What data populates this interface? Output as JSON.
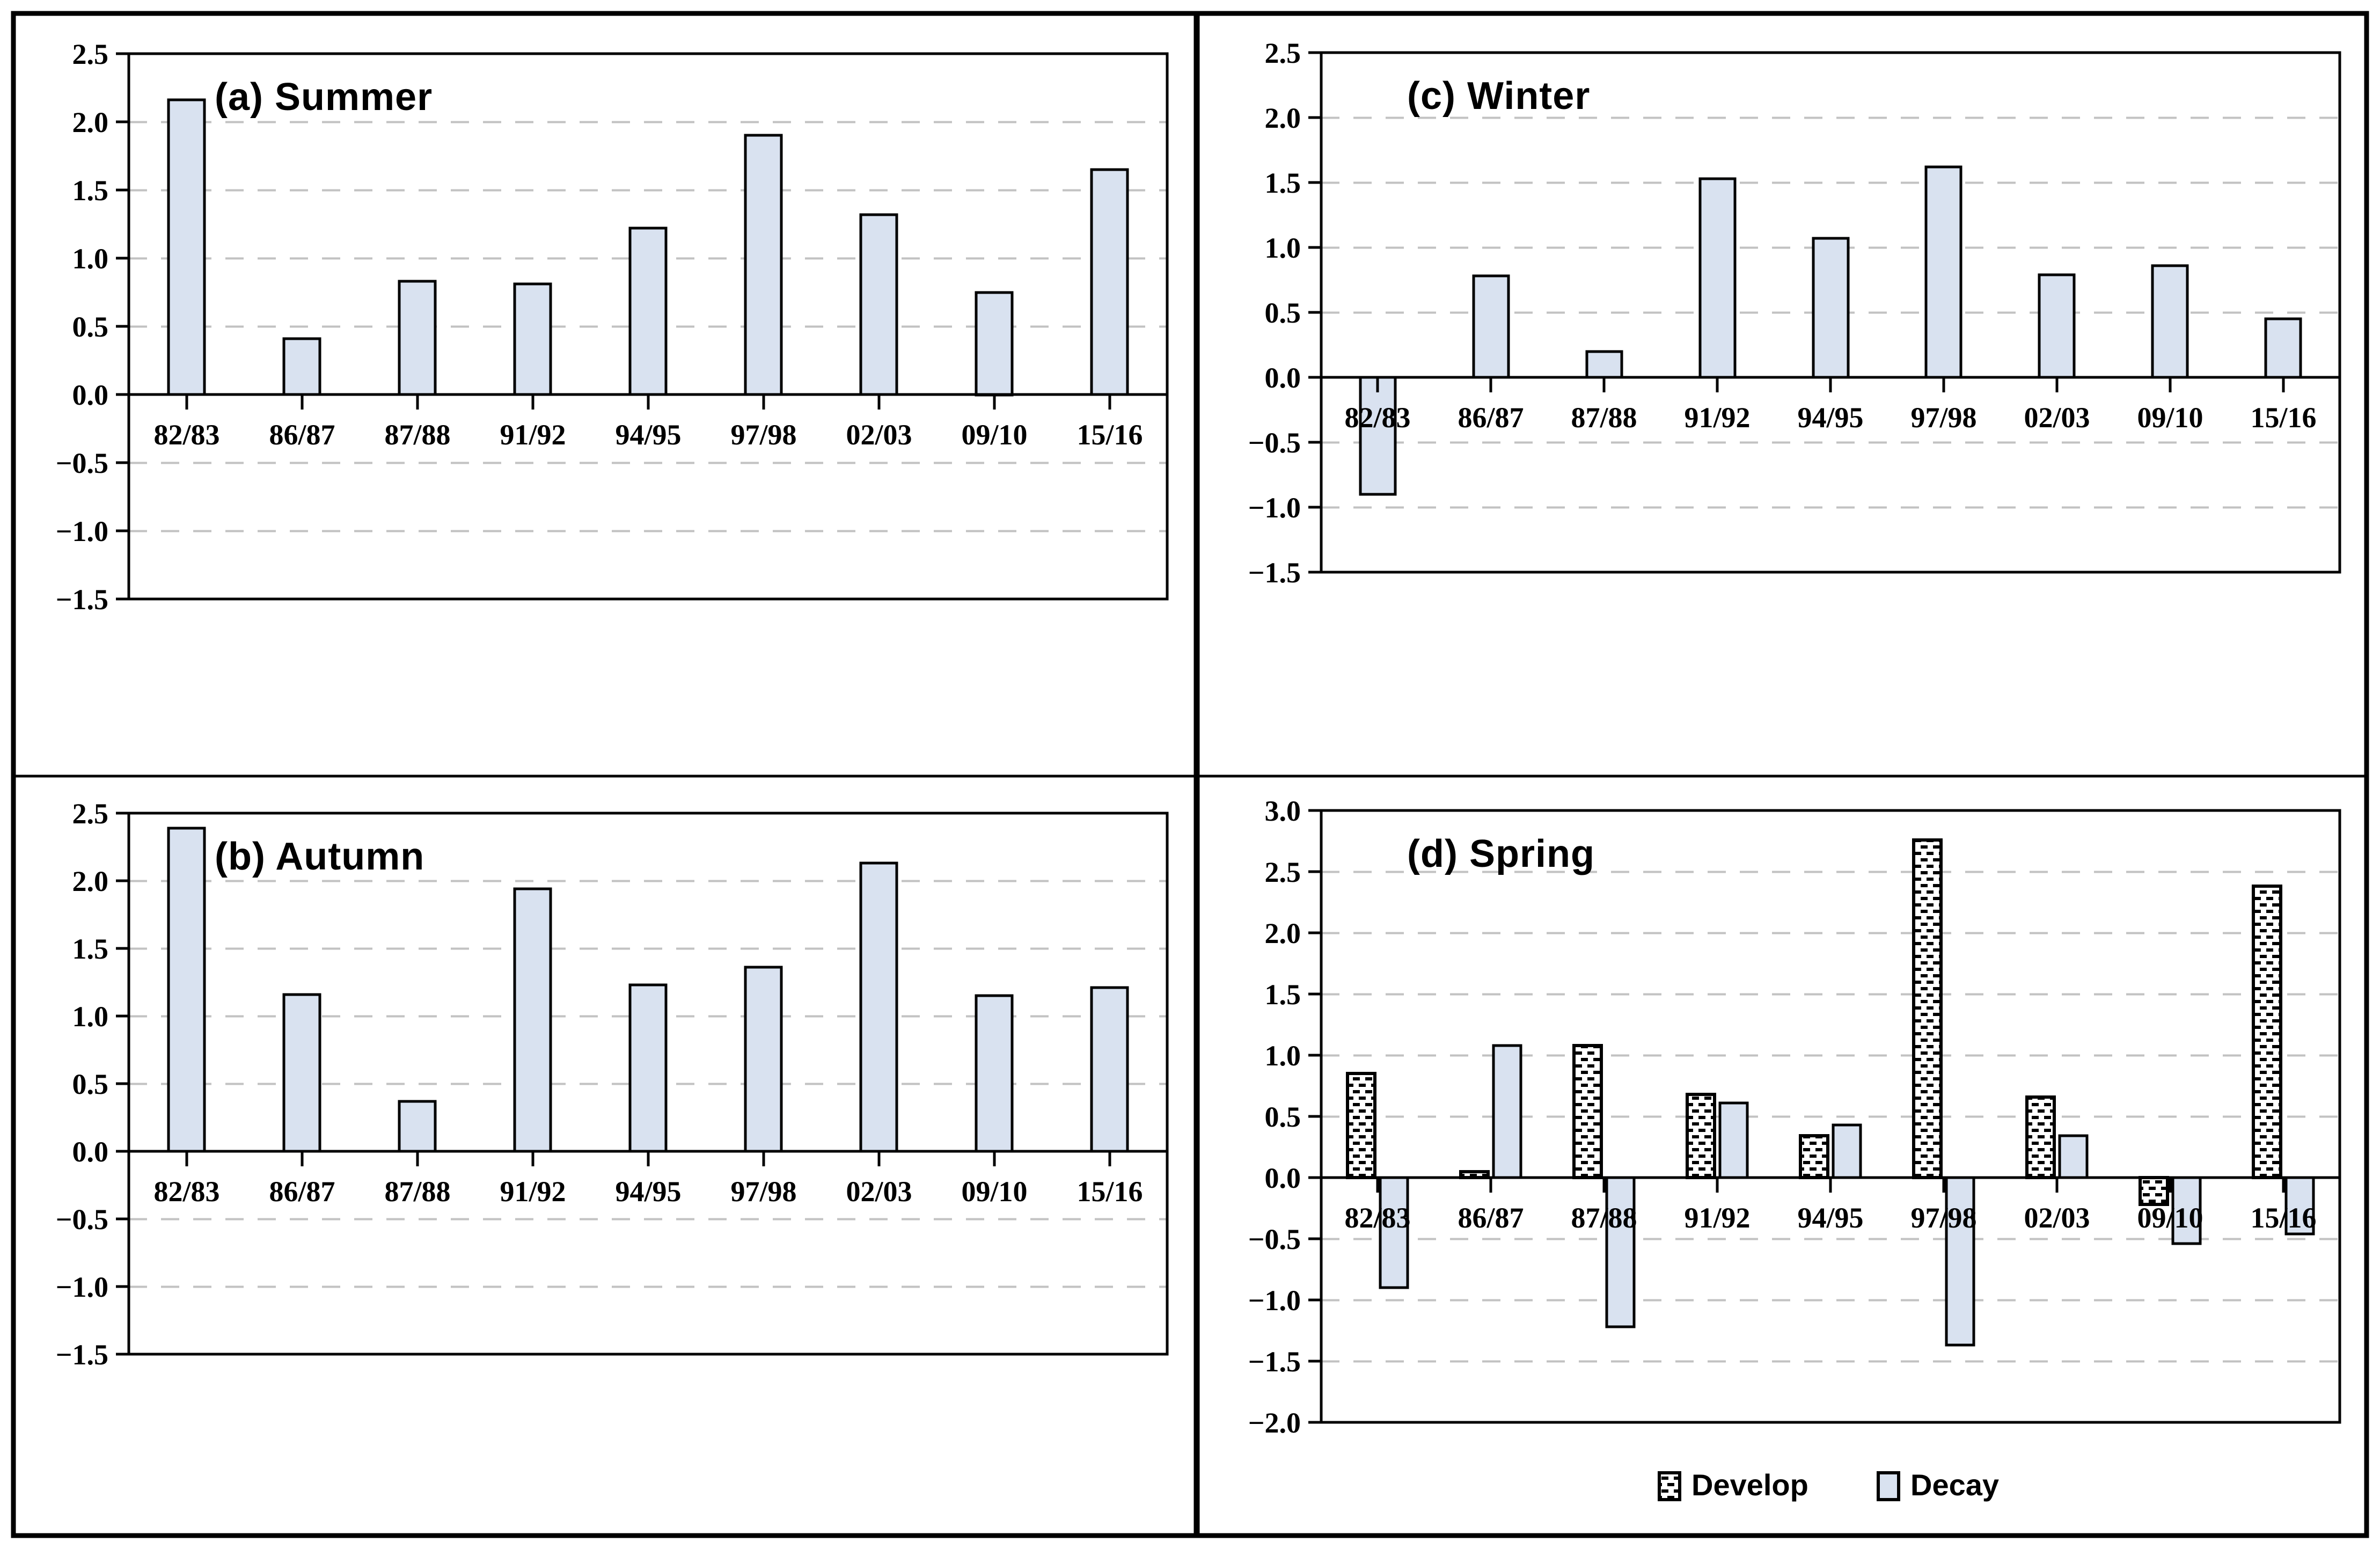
{
  "colors": {
    "background": "#ffffff",
    "bar_fill_decay": "#d9e2f0",
    "bar_fill_develop": "#ffffff",
    "develop_dash": "#000000",
    "bar_border": "#000000",
    "gridline": "#c2c2c2",
    "axis": "#000000",
    "text": "#000000"
  },
  "legend": {
    "develop_label": "Develop",
    "decay_label": "Decay"
  },
  "chart_data": [
    {
      "id": "a",
      "type": "bar",
      "title": "(a) Summer",
      "categories": [
        "82/83",
        "86/87",
        "87/88",
        "91/92",
        "94/95",
        "97/98",
        "02/03",
        "09/10",
        "15/16"
      ],
      "values": [
        2.16,
        0.41,
        0.83,
        0.81,
        1.22,
        1.9,
        1.32,
        0.75,
        1.65
      ],
      "ylim": [
        -1.5,
        2.5
      ],
      "ytick_step": 0.5,
      "yticks": [
        "2.5",
        "2.0",
        "1.5",
        "1.0",
        "0.5",
        "0.0",
        "−0.5",
        "−1.0",
        "−1.5"
      ],
      "grid": "dashed",
      "legend_position": "none"
    },
    {
      "id": "b",
      "type": "bar",
      "title": "(b) Autumn",
      "categories": [
        "82/83",
        "86/87",
        "87/88",
        "91/92",
        "94/95",
        "97/98",
        "02/03",
        "09/10",
        "15/16"
      ],
      "values": [
        2.39,
        1.16,
        0.37,
        1.94,
        1.23,
        1.36,
        2.13,
        1.15,
        1.21
      ],
      "ylim": [
        -1.5,
        2.5
      ],
      "ytick_step": 0.5,
      "yticks": [
        "2.5",
        "2.0",
        "1.5",
        "1.0",
        "0.5",
        "0.0",
        "−0.5",
        "−1.0",
        "−1.5"
      ],
      "grid": "dashed",
      "legend_position": "none"
    },
    {
      "id": "c",
      "type": "bar",
      "title": "(c) Winter",
      "categories": [
        "82/83",
        "86/87",
        "87/88",
        "91/92",
        "94/95",
        "97/98",
        "02/03",
        "09/10",
        "15/16"
      ],
      "values": [
        -0.9,
        0.78,
        0.2,
        1.53,
        1.07,
        1.62,
        0.79,
        0.86,
        0.45
      ],
      "ylim": [
        -1.5,
        2.5
      ],
      "ytick_step": 0.5,
      "yticks": [
        "2.5",
        "2.0",
        "1.5",
        "1.0",
        "0.5",
        "0.0",
        "−0.5",
        "−1.0",
        "−1.5"
      ],
      "grid": "dashed",
      "legend_position": "none"
    },
    {
      "id": "d",
      "type": "bar",
      "title": "(d) Spring",
      "categories": [
        "82/83",
        "86/87",
        "87/88",
        "91/92",
        "94/95",
        "97/98",
        "02/03",
        "09/10",
        "15/16"
      ],
      "series": [
        {
          "name": "Develop",
          "values": [
            0.85,
            0.05,
            1.08,
            0.68,
            0.34,
            2.76,
            0.66,
            -0.22,
            2.38
          ]
        },
        {
          "name": "Decay",
          "values": [
            -0.9,
            1.08,
            -1.22,
            0.61,
            0.43,
            -1.37,
            0.34,
            -0.54,
            -0.46
          ]
        }
      ],
      "ylim": [
        -2.0,
        3.0
      ],
      "ytick_step": 0.5,
      "yticks": [
        "3.0",
        "2.5",
        "2.0",
        "1.5",
        "1.0",
        "0.5",
        "0.0",
        "−0.5",
        "−1.0",
        "−1.5",
        "−2.0"
      ],
      "grid": "dashed",
      "legend_position": "bottom",
      "legend": [
        "Develop",
        "Decay"
      ]
    }
  ]
}
